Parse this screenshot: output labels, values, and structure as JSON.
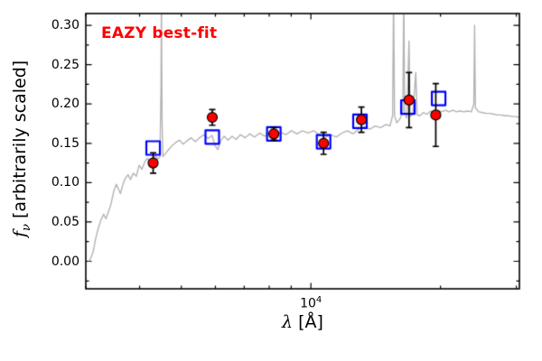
{
  "figure": {
    "background": "#ffffff"
  },
  "annotation": {
    "label": "EAZY best-fit",
    "color": "#ff0000"
  },
  "axes": {
    "xlabel": {
      "symbol": "λ",
      "rest": " [Å]"
    },
    "ylabel": {
      "symbol": "f",
      "subscript": "ν",
      "rest": " [arbitrarily scaled]"
    }
  },
  "chart_data": {
    "type": "line",
    "title": "",
    "xlabel": "lambda [Angstrom]",
    "ylabel": "f_nu [arbitrarily scaled]",
    "xscale": "log",
    "grid": false,
    "legend": "none",
    "xlim": [
      3000,
      30500
    ],
    "ylim": [
      -0.035,
      0.315
    ],
    "x_major_ticks": [
      {
        "value": 10000,
        "label_base": "10",
        "label_exp": "4"
      }
    ],
    "x_minor_ticks": [
      3000,
      4000,
      5000,
      6000,
      7000,
      8000,
      9000,
      20000,
      30000
    ],
    "y_ticks": [
      0.0,
      0.05,
      0.1,
      0.15,
      0.2,
      0.25,
      0.3
    ],
    "colors": {
      "spectrum": "#b3b3b3",
      "observed": "#ff0000",
      "observed_edge": "#000000",
      "model": "#0000ff",
      "errorbar": "#000000"
    },
    "series": [
      {
        "name": "model-spectrum",
        "type": "line",
        "points": [
          [
            3050,
            0.0
          ],
          [
            3080,
            0.004
          ],
          [
            3120,
            0.012
          ],
          [
            3160,
            0.028
          ],
          [
            3200,
            0.04
          ],
          [
            3250,
            0.052
          ],
          [
            3300,
            0.06
          ],
          [
            3340,
            0.054
          ],
          [
            3380,
            0.062
          ],
          [
            3430,
            0.072
          ],
          [
            3480,
            0.088
          ],
          [
            3530,
            0.098
          ],
          [
            3570,
            0.092
          ],
          [
            3610,
            0.086
          ],
          [
            3660,
            0.098
          ],
          [
            3710,
            0.106
          ],
          [
            3760,
            0.11
          ],
          [
            3810,
            0.104
          ],
          [
            3870,
            0.112
          ],
          [
            3930,
            0.108
          ],
          [
            3990,
            0.122
          ],
          [
            4050,
            0.117
          ],
          [
            4110,
            0.126
          ],
          [
            4170,
            0.131
          ],
          [
            4230,
            0.126
          ],
          [
            4290,
            0.13
          ],
          [
            4350,
            0.134
          ],
          [
            4410,
            0.13
          ],
          [
            4460,
            0.133
          ],
          [
            4485,
            0.22
          ],
          [
            4495,
            0.34
          ],
          [
            4510,
            0.18
          ],
          [
            4530,
            0.133
          ],
          [
            4590,
            0.137
          ],
          [
            4670,
            0.142
          ],
          [
            4760,
            0.147
          ],
          [
            4850,
            0.151
          ],
          [
            4950,
            0.154
          ],
          [
            5050,
            0.149
          ],
          [
            5150,
            0.153
          ],
          [
            5270,
            0.157
          ],
          [
            5390,
            0.152
          ],
          [
            5510,
            0.157
          ],
          [
            5640,
            0.161
          ],
          [
            5770,
            0.156
          ],
          [
            5890,
            0.16
          ],
          [
            5990,
            0.147
          ],
          [
            6080,
            0.142
          ],
          [
            6170,
            0.153
          ],
          [
            6290,
            0.159
          ],
          [
            6420,
            0.154
          ],
          [
            6560,
            0.159
          ],
          [
            6700,
            0.155
          ],
          [
            6860,
            0.161
          ],
          [
            7030,
            0.157
          ],
          [
            7210,
            0.162
          ],
          [
            7400,
            0.158
          ],
          [
            7600,
            0.163
          ],
          [
            7810,
            0.159
          ],
          [
            8030,
            0.164
          ],
          [
            8260,
            0.16
          ],
          [
            8500,
            0.164
          ],
          [
            8750,
            0.161
          ],
          [
            9010,
            0.166
          ],
          [
            9280,
            0.162
          ],
          [
            9560,
            0.166
          ],
          [
            9850,
            0.163
          ],
          [
            10150,
            0.166
          ],
          [
            10460,
            0.161
          ],
          [
            10780,
            0.157
          ],
          [
            11110,
            0.161
          ],
          [
            11450,
            0.158
          ],
          [
            11800,
            0.163
          ],
          [
            12160,
            0.166
          ],
          [
            12530,
            0.162
          ],
          [
            12910,
            0.168
          ],
          [
            13300,
            0.171
          ],
          [
            13700,
            0.168
          ],
          [
            14110,
            0.172
          ],
          [
            14530,
            0.17
          ],
          [
            14960,
            0.174
          ],
          [
            15260,
            0.172
          ],
          [
            15480,
            0.185
          ],
          [
            15560,
            0.34
          ],
          [
            15640,
            0.185
          ],
          [
            15830,
            0.176
          ],
          [
            16100,
            0.181
          ],
          [
            16350,
            0.19
          ],
          [
            16430,
            0.34
          ],
          [
            16510,
            0.19
          ],
          [
            16700,
            0.182
          ],
          [
            16900,
            0.28
          ],
          [
            17000,
            0.184
          ],
          [
            17250,
            0.187
          ],
          [
            17520,
            0.24
          ],
          [
            17650,
            0.186
          ],
          [
            17900,
            0.185
          ],
          [
            18250,
            0.189
          ],
          [
            18610,
            0.187
          ],
          [
            18980,
            0.191
          ],
          [
            19360,
            0.189
          ],
          [
            19740,
            0.192
          ],
          [
            20130,
            0.19
          ],
          [
            20530,
            0.192
          ],
          [
            20940,
            0.19
          ],
          [
            21360,
            0.192
          ],
          [
            21790,
            0.19
          ],
          [
            22220,
            0.191
          ],
          [
            22670,
            0.19
          ],
          [
            23120,
            0.191
          ],
          [
            23580,
            0.19
          ],
          [
            23900,
            0.2
          ],
          [
            24000,
            0.3
          ],
          [
            24100,
            0.195
          ],
          [
            24530,
            0.19
          ],
          [
            25020,
            0.189
          ],
          [
            25520,
            0.188
          ],
          [
            26030,
            0.188
          ],
          [
            26550,
            0.187
          ],
          [
            27080,
            0.186
          ],
          [
            27620,
            0.186
          ],
          [
            28170,
            0.185
          ],
          [
            28730,
            0.185
          ],
          [
            29300,
            0.184
          ],
          [
            29890,
            0.184
          ],
          [
            30400,
            0.183
          ]
        ]
      },
      {
        "name": "observed-photometry",
        "type": "scatter-errorbar",
        "points": [
          {
            "lambda": 4300,
            "f": 0.125,
            "err": 0.013
          },
          {
            "lambda": 5900,
            "f": 0.183,
            "err": 0.01
          },
          {
            "lambda": 8200,
            "f": 0.162,
            "err": 0.008
          },
          {
            "lambda": 10700,
            "f": 0.15,
            "err": 0.014
          },
          {
            "lambda": 13100,
            "f": 0.18,
            "err": 0.016
          },
          {
            "lambda": 16900,
            "f": 0.205,
            "err": 0.035
          },
          {
            "lambda": 19500,
            "f": 0.186,
            "err": 0.04
          }
        ]
      },
      {
        "name": "model-photometry",
        "type": "scatter-square",
        "points": [
          {
            "lambda": 4300,
            "f": 0.144
          },
          {
            "lambda": 5900,
            "f": 0.158
          },
          {
            "lambda": 8200,
            "f": 0.162
          },
          {
            "lambda": 10700,
            "f": 0.152
          },
          {
            "lambda": 13000,
            "f": 0.178
          },
          {
            "lambda": 16800,
            "f": 0.196
          },
          {
            "lambda": 19800,
            "f": 0.207
          }
        ]
      }
    ]
  }
}
